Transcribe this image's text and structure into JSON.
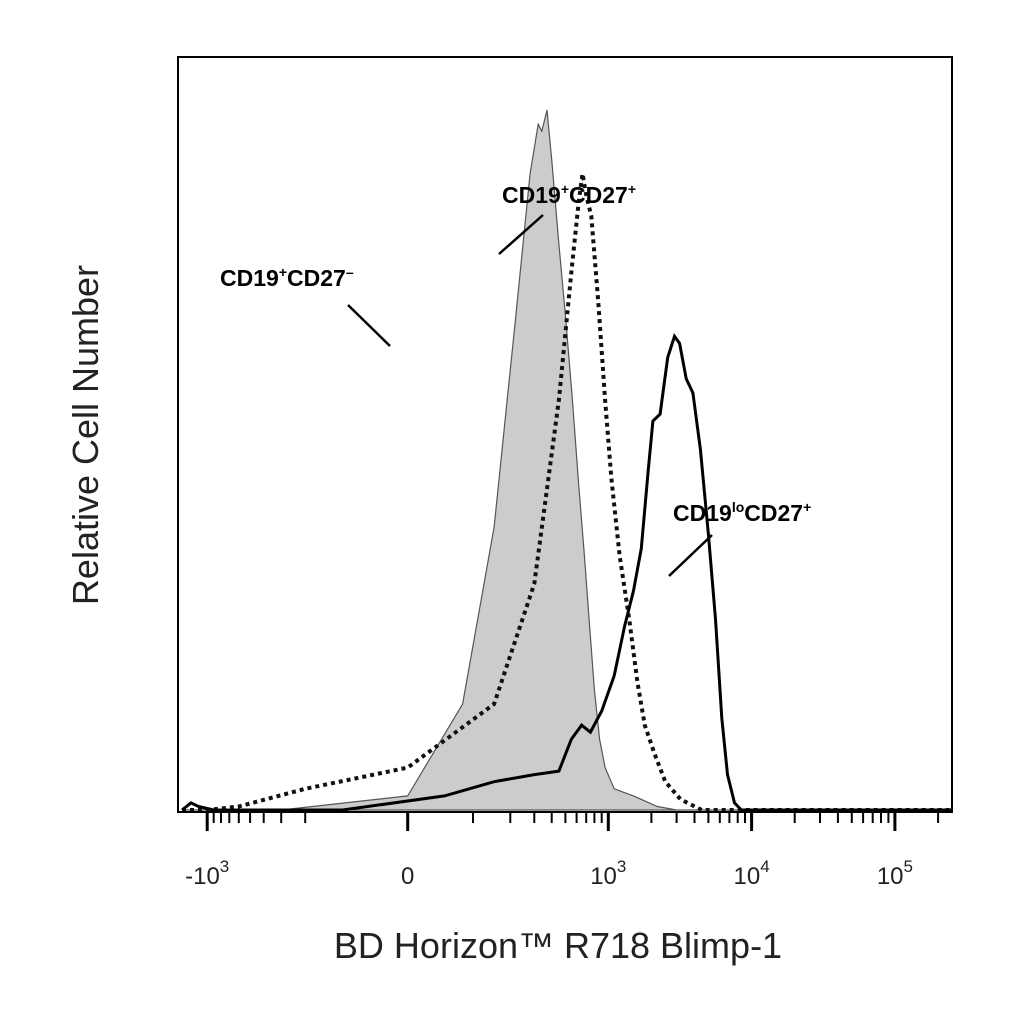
{
  "chart_data": {
    "type": "area",
    "xlabel": "BD Horizon™ R718 Blimp-1",
    "ylabel": "Relative Cell Number",
    "x_scale": "biexponential",
    "xlim": [
      -1600,
      250000
    ],
    "ylim": [
      0,
      100
    ],
    "grid": false,
    "tick_labels": [
      {
        "value": -1000,
        "base": "-10",
        "exp": "3"
      },
      {
        "value": 0,
        "base": "0",
        "exp": ""
      },
      {
        "value": 1000,
        "base": "10",
        "exp": "3"
      },
      {
        "value": 10000,
        "base": "10",
        "exp": "4"
      },
      {
        "value": 100000,
        "base": "10",
        "exp": "5"
      }
    ],
    "series": [
      {
        "style": "filled-gray",
        "points": [
          [
            -1500,
            0
          ],
          [
            -300,
            0
          ],
          [
            0,
            2
          ],
          [
            80,
            15
          ],
          [
            150,
            40
          ],
          [
            220,
            70
          ],
          [
            280,
            90
          ],
          [
            320,
            97
          ],
          [
            340,
            96
          ],
          [
            370,
            99
          ],
          [
            400,
            92
          ],
          [
            450,
            80
          ],
          [
            500,
            70
          ],
          [
            560,
            58
          ],
          [
            620,
            46
          ],
          [
            680,
            36
          ],
          [
            740,
            26
          ],
          [
            800,
            17
          ],
          [
            870,
            10
          ],
          [
            950,
            6
          ],
          [
            1100,
            3
          ],
          [
            1500,
            2
          ],
          [
            2200,
            0.5
          ],
          [
            3000,
            0
          ],
          [
            250000,
            0
          ]
        ]
      },
      {
        "style": "dotted",
        "points": [
          [
            -1500,
            0
          ],
          [
            -1000,
            0
          ],
          [
            -600,
            0.5
          ],
          [
            -200,
            3
          ],
          [
            0,
            6
          ],
          [
            150,
            15
          ],
          [
            300,
            32
          ],
          [
            450,
            58
          ],
          [
            550,
            76
          ],
          [
            620,
            86
          ],
          [
            660,
            90
          ],
          [
            700,
            87
          ],
          [
            760,
            84
          ],
          [
            850,
            72
          ],
          [
            950,
            58
          ],
          [
            1050,
            47
          ],
          [
            1200,
            36
          ],
          [
            1400,
            27
          ],
          [
            1600,
            18
          ],
          [
            1800,
            12
          ],
          [
            2100,
            8
          ],
          [
            2500,
            4
          ],
          [
            3200,
            1.5
          ],
          [
            4500,
            0
          ],
          [
            250000,
            0
          ]
        ]
      },
      {
        "style": "solid",
        "points": [
          [
            -1500,
            0
          ],
          [
            -1300,
            1
          ],
          [
            -1150,
            0.5
          ],
          [
            -900,
            0
          ],
          [
            -300,
            0
          ],
          [
            -100,
            0
          ],
          [
            50,
            2
          ],
          [
            150,
            4
          ],
          [
            300,
            5
          ],
          [
            450,
            5.5
          ],
          [
            550,
            10
          ],
          [
            650,
            12
          ],
          [
            750,
            11
          ],
          [
            900,
            14
          ],
          [
            1100,
            19
          ],
          [
            1300,
            26
          ],
          [
            1500,
            31
          ],
          [
            1700,
            37
          ],
          [
            1900,
            48
          ],
          [
            2050,
            55
          ],
          [
            2300,
            56
          ],
          [
            2600,
            64
          ],
          [
            2900,
            67
          ],
          [
            3150,
            66
          ],
          [
            3500,
            61
          ],
          [
            3900,
            59
          ],
          [
            4400,
            51
          ],
          [
            5000,
            39
          ],
          [
            5600,
            27
          ],
          [
            6200,
            13
          ],
          [
            6800,
            5
          ],
          [
            7600,
            1
          ],
          [
            8500,
            0
          ],
          [
            250000,
            0
          ]
        ]
      }
    ],
    "annotations": [
      {
        "base": "CD19",
        "sup1": "+",
        "mid": "CD27",
        "sup2": "–"
      },
      {
        "base": "CD19",
        "sup1": "+",
        "mid": "CD27",
        "sup2": "+"
      },
      {
        "base": "CD19",
        "sup1": "lo",
        "mid": "CD27",
        "sup2": "+"
      }
    ]
  }
}
